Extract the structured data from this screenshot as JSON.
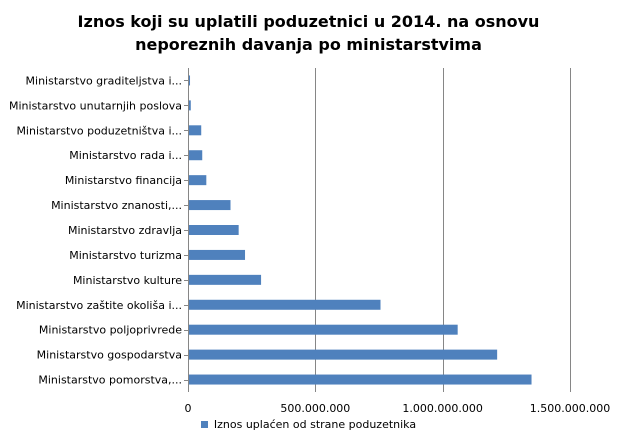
{
  "chart_data": {
    "type": "bar",
    "orientation": "horizontal",
    "title": [
      "Iznos koji su uplatili poduzetnici u 2014. na osnovu",
      "neporeznih davanja po ministarstvima"
    ],
    "categories": [
      "Ministarstvo graditeljstva i...",
      "Ministarstvo unutarnjih poslova",
      "Ministarstvo poduzetništva i...",
      "Ministarstvo rada i...",
      "Ministarstvo financija",
      "Ministarstvo znanosti,...",
      "Ministarstvo zdravlja",
      "Ministarstvo turizma",
      "Ministarstvo kulture",
      "Ministarstvo zaštite okoliša i...",
      "Ministarstvo poljoprivrede",
      "Ministarstvo gospodarstva",
      "Ministarstvo pomorstva,..."
    ],
    "series": [
      {
        "name": "Iznos uplaćen od strane poduzetnika",
        "values": [
          4000000,
          7000000,
          48000000,
          52000000,
          68000000,
          163000000,
          195000000,
          220000000,
          283000000,
          752000000,
          1055000000,
          1210000000,
          1345000000
        ]
      }
    ],
    "xlim": [
      0,
      1500000000
    ],
    "x_ticks": [
      0,
      500000000,
      1000000000,
      1500000000
    ],
    "x_tick_labels": [
      "0",
      "500.000.000",
      "1.000.000.000",
      "1.500.000.000"
    ],
    "grid": "vertical",
    "legend": "bottom",
    "bar_color": "#4f81bd",
    "grid_color": "#868686"
  }
}
